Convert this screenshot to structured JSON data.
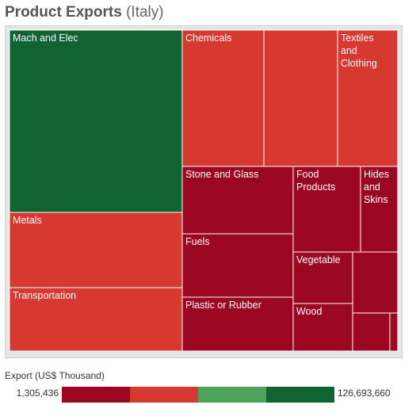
{
  "title": {
    "main": "Product Exports",
    "sub": "(Italy)"
  },
  "colors": {
    "dark_red": "#9b0620",
    "red": "#d7382f",
    "light_green": "#4da35a",
    "dark_green": "#0f6432",
    "background": "#e6e6e6"
  },
  "chart_data": {
    "type": "treemap",
    "title": "Product Exports (Italy)",
    "value_label": "Export (US$ Thousand)",
    "color_scale": {
      "min": 1305436,
      "max": 126693660,
      "min_label": "1,305,436",
      "max_label": "126,693,660",
      "colors": [
        "#9b0620",
        "#d7382f",
        "#4da35a",
        "#0f6432"
      ]
    },
    "items": [
      {
        "label": "Mach and Elec",
        "value": 126693660,
        "color_class": "dark_green"
      },
      {
        "label": "Metals",
        "value": 28000000,
        "color_class": "red"
      },
      {
        "label": "Transportation",
        "value": 28000000,
        "color_class": "red"
      },
      {
        "label": "Chemicals",
        "value": 28000000,
        "color_class": "red"
      },
      {
        "label": "",
        "value": 23000000,
        "color_class": "red"
      },
      {
        "label": "Textiles and Clothing",
        "value": 18000000,
        "color_class": "red"
      },
      {
        "label": "Stone and Glass",
        "value": 12000000,
        "color_class": "dark_red"
      },
      {
        "label": "Fuels",
        "value": 12000000,
        "color_class": "dark_red"
      },
      {
        "label": "Plastic or Rubber",
        "value": 10000000,
        "color_class": "dark_red"
      },
      {
        "label": "Food Products",
        "value": 9500000,
        "color_class": "dark_red"
      },
      {
        "label": "Hides and Skins",
        "value": 5500000,
        "color_class": "dark_red"
      },
      {
        "label": "Vegetable",
        "value": 4000000,
        "color_class": "dark_red"
      },
      {
        "label": "",
        "value": 4000000,
        "color_class": "dark_red"
      },
      {
        "label": "Wood",
        "value": 4000000,
        "color_class": "dark_red"
      },
      {
        "label": "",
        "value": 2800000,
        "color_class": "dark_red"
      },
      {
        "label": "",
        "value": 1305436,
        "color_class": "dark_red"
      }
    ]
  }
}
